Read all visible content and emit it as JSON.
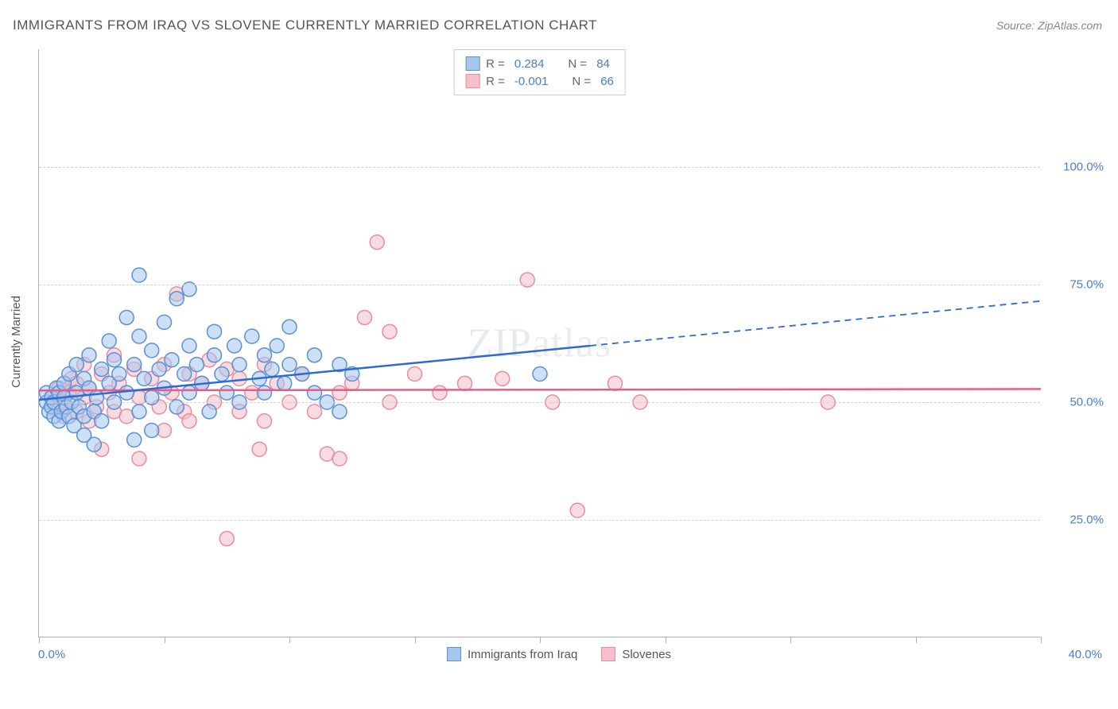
{
  "title": "IMMIGRANTS FROM IRAQ VS SLOVENE CURRENTLY MARRIED CORRELATION CHART",
  "source": "Source: ZipAtlas.com",
  "watermark_bold": "ZIP",
  "watermark_thin": "atlas",
  "yaxis_title": "Currently Married",
  "chart": {
    "type": "scatter",
    "background_color": "#ffffff",
    "grid_color": "#d0d0d0",
    "axis_color": "#b0b0b0",
    "tick_label_color": "#4a7ec9",
    "tick_fontsize": 15,
    "xlim": [
      0,
      40
    ],
    "ylim": [
      0,
      125
    ],
    "y_gridlines": [
      25,
      50,
      75,
      100
    ],
    "y_tick_labels": [
      "25.0%",
      "50.0%",
      "75.0%",
      "100.0%"
    ],
    "x_ticks": [
      0,
      5,
      10,
      15,
      20,
      25,
      30,
      35,
      40
    ],
    "x_label_min": "0.0%",
    "x_label_max": "40.0%",
    "marker_radius": 9,
    "marker_opacity": 0.55,
    "trend_line_width": 2.5,
    "series": [
      {
        "name": "Immigrants from Iraq",
        "r_value": "0.284",
        "n_value": "84",
        "fill": "#a6c6ec",
        "stroke": "#5b8fd6",
        "line_color": "#2e6bd1",
        "trend": {
          "x1": 0,
          "y1": 50.5,
          "x2": 22,
          "y2": 62,
          "ext_x2": 40,
          "ext_y2": 71.5
        },
        "points": [
          [
            0.3,
            50
          ],
          [
            0.3,
            52
          ],
          [
            0.4,
            48
          ],
          [
            0.5,
            49
          ],
          [
            0.5,
            51
          ],
          [
            0.6,
            47
          ],
          [
            0.6,
            50
          ],
          [
            0.7,
            53
          ],
          [
            0.8,
            46
          ],
          [
            0.8,
            52
          ],
          [
            0.9,
            48
          ],
          [
            1.0,
            51
          ],
          [
            1.0,
            54
          ],
          [
            1.1,
            49
          ],
          [
            1.2,
            47
          ],
          [
            1.2,
            56
          ],
          [
            1.3,
            50
          ],
          [
            1.4,
            45
          ],
          [
            1.5,
            52
          ],
          [
            1.5,
            58
          ],
          [
            1.6,
            49
          ],
          [
            1.8,
            55
          ],
          [
            1.8,
            47
          ],
          [
            2.0,
            53
          ],
          [
            2.0,
            60
          ],
          [
            2.2,
            48
          ],
          [
            2.3,
            51
          ],
          [
            2.5,
            57
          ],
          [
            2.5,
            46
          ],
          [
            2.8,
            54
          ],
          [
            2.8,
            63
          ],
          [
            3.0,
            50
          ],
          [
            3.0,
            59
          ],
          [
            3.2,
            56
          ],
          [
            3.5,
            52
          ],
          [
            3.5,
            68
          ],
          [
            3.8,
            58
          ],
          [
            4.0,
            48
          ],
          [
            4.0,
            64
          ],
          [
            4.0,
            77
          ],
          [
            4.2,
            55
          ],
          [
            4.5,
            51
          ],
          [
            4.5,
            61
          ],
          [
            4.8,
            57
          ],
          [
            5.0,
            53
          ],
          [
            5.0,
            67
          ],
          [
            5.3,
            59
          ],
          [
            5.5,
            49
          ],
          [
            5.5,
            72
          ],
          [
            5.8,
            56
          ],
          [
            6.0,
            52
          ],
          [
            6.0,
            62
          ],
          [
            6.0,
            74
          ],
          [
            6.3,
            58
          ],
          [
            6.5,
            54
          ],
          [
            6.8,
            48
          ],
          [
            7.0,
            60
          ],
          [
            7.0,
            65
          ],
          [
            7.3,
            56
          ],
          [
            7.5,
            52
          ],
          [
            7.8,
            62
          ],
          [
            8.0,
            58
          ],
          [
            8.0,
            50
          ],
          [
            8.5,
            64
          ],
          [
            8.8,
            55
          ],
          [
            9.0,
            60
          ],
          [
            9.0,
            52
          ],
          [
            9.3,
            57
          ],
          [
            9.5,
            62
          ],
          [
            9.8,
            54
          ],
          [
            10.0,
            58
          ],
          [
            10.0,
            66
          ],
          [
            10.5,
            56
          ],
          [
            11.0,
            60
          ],
          [
            11.0,
            52
          ],
          [
            11.5,
            50
          ],
          [
            12.0,
            58
          ],
          [
            12.0,
            48
          ],
          [
            12.5,
            56
          ],
          [
            20.0,
            56
          ],
          [
            3.8,
            42
          ],
          [
            4.5,
            44
          ],
          [
            2.2,
            41
          ],
          [
            1.8,
            43
          ]
        ]
      },
      {
        "name": "Slovenes",
        "r_value": "-0.001",
        "n_value": "66",
        "fill": "#f4c0cb",
        "stroke": "#e88ca0",
        "line_color": "#e85d85",
        "trend": {
          "x1": 0,
          "y1": 52.5,
          "x2": 40,
          "y2": 52.8
        },
        "points": [
          [
            0.5,
            51
          ],
          [
            0.7,
            49
          ],
          [
            0.8,
            53
          ],
          [
            1.0,
            50
          ],
          [
            1.0,
            47
          ],
          [
            1.2,
            52
          ],
          [
            1.3,
            55
          ],
          [
            1.5,
            48
          ],
          [
            1.5,
            54
          ],
          [
            1.8,
            51
          ],
          [
            1.8,
            58
          ],
          [
            2.0,
            46
          ],
          [
            2.0,
            53
          ],
          [
            2.3,
            49
          ],
          [
            2.5,
            56
          ],
          [
            2.5,
            40
          ],
          [
            2.8,
            52
          ],
          [
            3.0,
            48
          ],
          [
            3.0,
            60
          ],
          [
            3.2,
            54
          ],
          [
            3.5,
            47
          ],
          [
            3.8,
            57
          ],
          [
            4.0,
            51
          ],
          [
            4.0,
            38
          ],
          [
            4.5,
            55
          ],
          [
            4.8,
            49
          ],
          [
            5.0,
            58
          ],
          [
            5.0,
            44
          ],
          [
            5.3,
            52
          ],
          [
            5.5,
            73
          ],
          [
            5.8,
            48
          ],
          [
            6.0,
            56
          ],
          [
            6.0,
            46
          ],
          [
            6.5,
            54
          ],
          [
            6.8,
            59
          ],
          [
            7.0,
            50
          ],
          [
            7.5,
            57
          ],
          [
            7.5,
            21
          ],
          [
            8.0,
            48
          ],
          [
            8.0,
            55
          ],
          [
            8.5,
            52
          ],
          [
            8.8,
            40
          ],
          [
            9.0,
            58
          ],
          [
            9.0,
            46
          ],
          [
            9.5,
            54
          ],
          [
            10.0,
            50
          ],
          [
            10.5,
            56
          ],
          [
            11.0,
            48
          ],
          [
            11.5,
            39
          ],
          [
            12.0,
            52
          ],
          [
            12.0,
            38
          ],
          [
            12.5,
            54
          ],
          [
            13.0,
            68
          ],
          [
            13.5,
            84
          ],
          [
            14.0,
            65
          ],
          [
            14.0,
            50
          ],
          [
            15.0,
            56
          ],
          [
            16.0,
            52
          ],
          [
            17.0,
            54
          ],
          [
            18.5,
            55
          ],
          [
            19.5,
            76
          ],
          [
            20.5,
            50
          ],
          [
            21.5,
            27
          ],
          [
            23.0,
            54
          ],
          [
            24.0,
            50
          ],
          [
            31.5,
            50
          ]
        ]
      }
    ]
  },
  "legend_top": {
    "r_label": "R =",
    "n_label": "N ="
  },
  "legend_bottom_labels": [
    "Immigrants from Iraq",
    "Slovenes"
  ]
}
